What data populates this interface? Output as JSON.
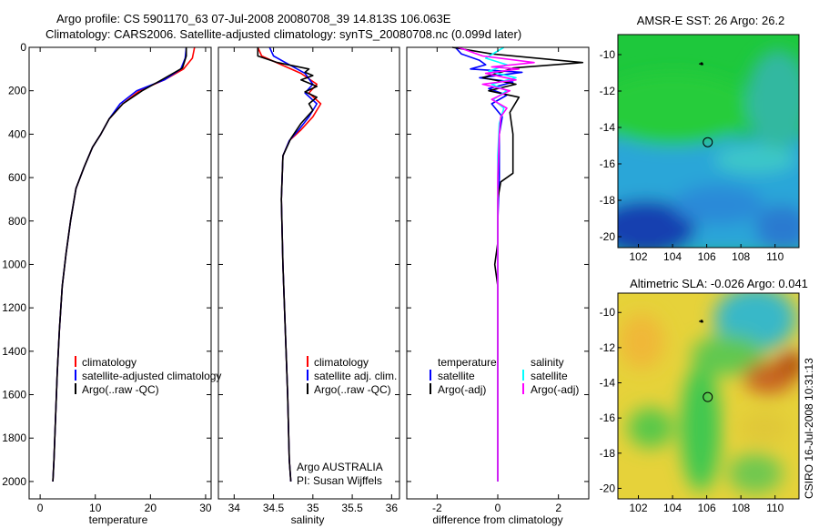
{
  "title": {
    "line1": "Argo profile: CS 5901170_63 07-Jul-2008 20080708_39 14.813S 106.063E",
    "line2": "Climatology: CARS2006. Satellite-adjusted climatology: synTS_20080708.nc (0.099d later)"
  },
  "colors": {
    "climatology": "#ff0000",
    "satellite": "#0000ff",
    "argo": "#000000",
    "sat_salinity": "#00ffff",
    "argo_salinity": "#ff00ff"
  },
  "chart_data": [
    {
      "type": "line",
      "name": "temperature-profile",
      "xlabel": "temperature",
      "xlim": [
        -2,
        31
      ],
      "ylim": [
        0,
        2080
      ],
      "xticks": [
        "0",
        "10",
        "20",
        "30"
      ],
      "yticks": [
        "0",
        "200",
        "400",
        "600",
        "800",
        "1000",
        "1200",
        "1400",
        "1600",
        "1800",
        "2000"
      ],
      "legend": [
        "climatology",
        "satellite-adjusted climatology",
        "Argo(..raw -QC)"
      ],
      "series": [
        {
          "name": "climatology",
          "color": "#ff0000",
          "points": [
            [
              28,
              0
            ],
            [
              27.6,
              50
            ],
            [
              26,
              100
            ],
            [
              22.5,
              150
            ],
            [
              18,
              200
            ],
            [
              15,
              260
            ],
            [
              12.5,
              330
            ],
            [
              11,
              400
            ],
            [
              9.5,
              460
            ],
            [
              8,
              550
            ],
            [
              6.5,
              650
            ],
            [
              5.5,
              800
            ],
            [
              4.7,
              950
            ],
            [
              4,
              1100
            ],
            [
              3.5,
              1300
            ],
            [
              3.1,
              1500
            ],
            [
              2.8,
              1700
            ],
            [
              2.5,
              1900
            ],
            [
              2.3,
              2000
            ]
          ]
        },
        {
          "name": "satellite-adjusted climatology",
          "color": "#0000ff",
          "points": [
            [
              26.5,
              0
            ],
            [
              26.3,
              50
            ],
            [
              25.5,
              100
            ],
            [
              22.5,
              150
            ],
            [
              17.5,
              200
            ],
            [
              14.5,
              260
            ],
            [
              12.5,
              330
            ],
            [
              11,
              400
            ],
            [
              9.5,
              460
            ],
            [
              8,
              550
            ],
            [
              6.5,
              650
            ],
            [
              5.5,
              800
            ],
            [
              4.7,
              950
            ],
            [
              4,
              1100
            ],
            [
              3.5,
              1300
            ],
            [
              3.1,
              1500
            ],
            [
              2.8,
              1700
            ],
            [
              2.5,
              1900
            ],
            [
              2.3,
              2000
            ]
          ]
        },
        {
          "name": "Argo(..raw -QC)",
          "color": "#000000",
          "points": [
            [
              26.5,
              0
            ],
            [
              26.5,
              40
            ],
            [
              25.8,
              95
            ],
            [
              22,
              150
            ],
            [
              18.5,
              200
            ],
            [
              15,
              260
            ],
            [
              12.5,
              330
            ],
            [
              11,
              400
            ],
            [
              9.5,
              460
            ],
            [
              8,
              550
            ],
            [
              6.5,
              650
            ],
            [
              5.5,
              800
            ],
            [
              4.7,
              950
            ],
            [
              4,
              1100
            ],
            [
              3.5,
              1300
            ],
            [
              3.1,
              1500
            ],
            [
              2.8,
              1700
            ],
            [
              2.5,
              1900
            ],
            [
              2.3,
              2000
            ]
          ]
        }
      ]
    },
    {
      "type": "line",
      "name": "salinity-profile",
      "xlabel": "salinity",
      "xlim": [
        33.8,
        36.1
      ],
      "ylim": [
        0,
        2080
      ],
      "xticks": [
        "34",
        "34.5",
        "35",
        "35.5",
        "36"
      ],
      "legend": [
        "climatology",
        "satellite adj. clim.",
        "Argo(..raw -QC)"
      ],
      "annotation": [
        "Argo AUSTRALIA",
        "PI: Susan Wijffels"
      ],
      "series": [
        {
          "name": "climatology",
          "color": "#ff0000",
          "points": [
            [
              34.3,
              0
            ],
            [
              34.35,
              40
            ],
            [
              34.6,
              80
            ],
            [
              34.85,
              120
            ],
            [
              35.05,
              170
            ],
            [
              34.95,
              210
            ],
            [
              35.1,
              260
            ],
            [
              35.0,
              320
            ],
            [
              34.85,
              380
            ],
            [
              34.7,
              430
            ],
            [
              34.62,
              500
            ],
            [
              34.6,
              700
            ],
            [
              34.62,
              1000
            ],
            [
              34.65,
              1300
            ],
            [
              34.68,
              1600
            ],
            [
              34.7,
              1900
            ],
            [
              34.72,
              2000
            ]
          ]
        },
        {
          "name": "satellite adj. clim.",
          "color": "#0000ff",
          "points": [
            [
              34.45,
              0
            ],
            [
              34.5,
              40
            ],
            [
              34.7,
              80
            ],
            [
              34.9,
              120
            ],
            [
              35.0,
              170
            ],
            [
              34.9,
              210
            ],
            [
              35.05,
              260
            ],
            [
              34.95,
              320
            ],
            [
              34.82,
              380
            ],
            [
              34.7,
              430
            ],
            [
              34.62,
              500
            ],
            [
              34.6,
              700
            ],
            [
              34.62,
              1000
            ],
            [
              34.65,
              1300
            ],
            [
              34.68,
              1600
            ],
            [
              34.7,
              1900
            ],
            [
              34.72,
              2000
            ]
          ]
        },
        {
          "name": "Argo(..raw -QC)",
          "color": "#000000",
          "points": [
            [
              34.3,
              0
            ],
            [
              34.3,
              40
            ],
            [
              34.55,
              70
            ],
            [
              34.95,
              100
            ],
            [
              34.9,
              115
            ],
            [
              35.0,
              130
            ],
            [
              34.85,
              150
            ],
            [
              35.05,
              180
            ],
            [
              34.9,
              205
            ],
            [
              35.05,
              230
            ],
            [
              34.95,
              260
            ],
            [
              35.0,
              290
            ],
            [
              34.85,
              350
            ],
            [
              34.72,
              420
            ],
            [
              34.62,
              500
            ],
            [
              34.6,
              700
            ],
            [
              34.62,
              1000
            ],
            [
              34.65,
              1300
            ],
            [
              34.68,
              1600
            ],
            [
              34.7,
              1900
            ],
            [
              34.72,
              2000
            ]
          ]
        }
      ]
    },
    {
      "type": "line",
      "name": "difference-profile",
      "xlabel": "difference from climatology",
      "xlim": [
        -3,
        3
      ],
      "ylim": [
        0,
        2080
      ],
      "xticks": [
        "-2",
        "0",
        "2"
      ],
      "legend_headers": [
        "temperature",
        "salinity"
      ],
      "legend": [
        "satellite",
        "Argo(-adj)",
        "satellite",
        "Argo(-adj)"
      ],
      "series": [
        {
          "name": "temperature satellite",
          "color": "#0000ff",
          "points": [
            [
              -1.4,
              0
            ],
            [
              -1.2,
              30
            ],
            [
              -0.6,
              60
            ],
            [
              -0.4,
              80
            ],
            [
              -0.9,
              100
            ],
            [
              0.8,
              115
            ],
            [
              -0.6,
              140
            ],
            [
              0.5,
              160
            ],
            [
              -0.3,
              190
            ],
            [
              0.3,
              220
            ],
            [
              -0.2,
              260
            ],
            [
              0.15,
              320
            ],
            [
              0.05,
              400
            ],
            [
              0.05,
              600
            ],
            [
              0,
              800
            ],
            [
              0,
              1200
            ],
            [
              0,
              1600
            ],
            [
              0,
              2000
            ]
          ]
        },
        {
          "name": "temperature Argo(-adj)",
          "color": "#000000",
          "points": [
            [
              -1.5,
              0
            ],
            [
              -0.2,
              30
            ],
            [
              2.8,
              70
            ],
            [
              0.5,
              95
            ],
            [
              0.2,
              110
            ],
            [
              -0.5,
              140
            ],
            [
              0.6,
              170
            ],
            [
              -0.3,
              200
            ],
            [
              0.7,
              230
            ],
            [
              0.4,
              300
            ],
            [
              0.5,
              400
            ],
            [
              0.5,
              500
            ],
            [
              0.5,
              580
            ],
            [
              0.1,
              620
            ],
            [
              0,
              700
            ],
            [
              0,
              900
            ],
            [
              -0.1,
              1000
            ],
            [
              0,
              1100
            ],
            [
              0,
              1500
            ],
            [
              0,
              2000
            ]
          ]
        },
        {
          "name": "salinity satellite",
          "color": "#00ffff",
          "points": [
            [
              0.2,
              0
            ],
            [
              -0.4,
              50
            ],
            [
              0.3,
              80
            ],
            [
              -0.3,
              110
            ],
            [
              0.6,
              140
            ],
            [
              -0.2,
              170
            ],
            [
              0.3,
              200
            ],
            [
              -0.15,
              240
            ],
            [
              0.2,
              280
            ],
            [
              0.05,
              350
            ],
            [
              0,
              500
            ],
            [
              0,
              800
            ],
            [
              0,
              1200
            ],
            [
              0,
              1600
            ],
            [
              0,
              2000
            ]
          ]
        },
        {
          "name": "salinity Argo(-adj)",
          "color": "#ff00ff",
          "points": [
            [
              -1.3,
              0
            ],
            [
              -0.5,
              40
            ],
            [
              1.2,
              70
            ],
            [
              -0.2,
              90
            ],
            [
              0.7,
              100
            ],
            [
              -0.4,
              120
            ],
            [
              0.6,
              150
            ],
            [
              -0.5,
              170
            ],
            [
              0.4,
              200
            ],
            [
              -0.2,
              240
            ],
            [
              0.3,
              280
            ],
            [
              0.1,
              320
            ],
            [
              0.05,
              400
            ],
            [
              0,
              600
            ],
            [
              0,
              800
            ],
            [
              0,
              1200
            ],
            [
              0,
              2000
            ]
          ]
        }
      ]
    },
    {
      "type": "heatmap",
      "name": "sst-map",
      "title": "AMSR-E SST: 26 Argo: 26.2",
      "xlim": [
        100.8,
        111.4
      ],
      "ylim": [
        -20.6,
        -8.9
      ],
      "xticks": [
        "102",
        "104",
        "106",
        "108",
        "110"
      ],
      "yticks": [
        "-10",
        "-12",
        "-14",
        "-16",
        "-18",
        "-20"
      ],
      "profile_marker": {
        "lon": 106.06,
        "lat": -14.81
      },
      "track_marker": {
        "lon": 105.7,
        "lat": -10.5
      }
    },
    {
      "type": "heatmap",
      "name": "sla-map",
      "title": "Altimetric SLA: -0.026 Argo: 0.041",
      "xlim": [
        100.8,
        111.4
      ],
      "ylim": [
        -20.6,
        -8.9
      ],
      "xticks": [
        "102",
        "104",
        "106",
        "108",
        "110"
      ],
      "yticks": [
        "-10",
        "-12",
        "-14",
        "-16",
        "-18",
        "-20"
      ],
      "profile_marker": {
        "lon": 106.06,
        "lat": -14.81
      },
      "track_marker": {
        "lon": 105.7,
        "lat": -10.5
      }
    }
  ],
  "side_caption": "CSIRO 16-Jul-2008 10:31:13"
}
